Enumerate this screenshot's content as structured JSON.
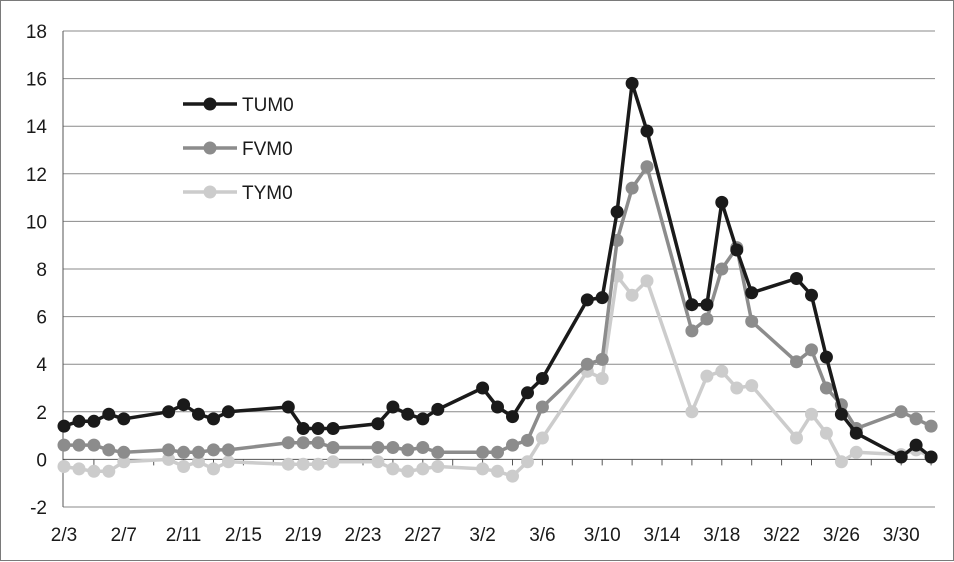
{
  "chart_data": {
    "type": "line",
    "title": "",
    "xlabel": "",
    "ylabel": "",
    "ylim": [
      -2,
      18
    ],
    "yticks": [
      -2,
      0,
      2,
      4,
      6,
      8,
      10,
      12,
      14,
      16,
      18
    ],
    "grid": "horizontal",
    "legend_position": "upper-left",
    "x_tick_labels": [
      "2/3",
      "2/7",
      "2/11",
      "2/15",
      "2/19",
      "2/23",
      "2/27",
      "3/2",
      "3/6",
      "3/10",
      "3/14",
      "3/18",
      "3/22",
      "3/26",
      "3/30"
    ],
    "series": [
      {
        "name": "TUM0",
        "color": "#1a1a1a",
        "points": [
          [
            "2/3",
            1.4
          ],
          [
            "2/4",
            1.6
          ],
          [
            "2/5",
            1.6
          ],
          [
            "2/6",
            1.9
          ],
          [
            "2/7",
            1.7
          ],
          [
            "2/10",
            2.0
          ],
          [
            "2/11",
            2.3
          ],
          [
            "2/12",
            1.9
          ],
          [
            "2/13",
            1.7
          ],
          [
            "2/14",
            2.0
          ],
          [
            "2/18",
            2.2
          ],
          [
            "2/19",
            1.3
          ],
          [
            "2/20",
            1.3
          ],
          [
            "2/21",
            1.3
          ],
          [
            "2/24",
            1.5
          ],
          [
            "2/25",
            2.2
          ],
          [
            "2/26",
            1.9
          ],
          [
            "2/27",
            1.7
          ],
          [
            "2/28",
            2.1
          ],
          [
            "3/2",
            3.0
          ],
          [
            "3/3",
            2.2
          ],
          [
            "3/4",
            1.8
          ],
          [
            "3/5",
            2.8
          ],
          [
            "3/6",
            3.4
          ],
          [
            "3/9",
            6.7
          ],
          [
            "3/10",
            6.8
          ],
          [
            "3/11",
            10.4
          ],
          [
            "3/12",
            15.8
          ],
          [
            "3/13",
            13.8
          ],
          [
            "3/16",
            6.5
          ],
          [
            "3/17",
            6.5
          ],
          [
            "3/18",
            10.8
          ],
          [
            "3/19",
            8.8
          ],
          [
            "3/20",
            7.0
          ],
          [
            "3/23",
            7.6
          ],
          [
            "3/24",
            6.9
          ],
          [
            "3/25",
            4.3
          ],
          [
            "3/26",
            1.9
          ],
          [
            "3/27",
            1.1
          ],
          [
            "3/30",
            0.1
          ],
          [
            "3/31",
            0.6
          ],
          [
            "4/1",
            0.1
          ]
        ]
      },
      {
        "name": "FVM0",
        "color": "#8c8c8c",
        "points": [
          [
            "2/3",
            0.6
          ],
          [
            "2/4",
            0.6
          ],
          [
            "2/5",
            0.6
          ],
          [
            "2/6",
            0.4
          ],
          [
            "2/7",
            0.3
          ],
          [
            "2/10",
            0.4
          ],
          [
            "2/11",
            0.3
          ],
          [
            "2/12",
            0.3
          ],
          [
            "2/13",
            0.4
          ],
          [
            "2/14",
            0.4
          ],
          [
            "2/18",
            0.7
          ],
          [
            "2/19",
            0.7
          ],
          [
            "2/20",
            0.7
          ],
          [
            "2/21",
            0.5
          ],
          [
            "2/24",
            0.5
          ],
          [
            "2/25",
            0.5
          ],
          [
            "2/26",
            0.4
          ],
          [
            "2/27",
            0.5
          ],
          [
            "2/28",
            0.3
          ],
          [
            "3/2",
            0.3
          ],
          [
            "3/3",
            0.3
          ],
          [
            "3/4",
            0.6
          ],
          [
            "3/5",
            0.8
          ],
          [
            "3/6",
            2.2
          ],
          [
            "3/9",
            4.0
          ],
          [
            "3/10",
            4.2
          ],
          [
            "3/11",
            9.2
          ],
          [
            "3/12",
            11.4
          ],
          [
            "3/13",
            12.3
          ],
          [
            "3/16",
            5.4
          ],
          [
            "3/17",
            5.9
          ],
          [
            "3/18",
            8.0
          ],
          [
            "3/19",
            8.9
          ],
          [
            "3/20",
            5.8
          ],
          [
            "3/23",
            4.1
          ],
          [
            "3/24",
            4.6
          ],
          [
            "3/25",
            3.0
          ],
          [
            "3/26",
            2.3
          ],
          [
            "3/27",
            1.3
          ],
          [
            "3/30",
            2.0
          ],
          [
            "3/31",
            1.7
          ],
          [
            "4/1",
            1.4
          ]
        ]
      },
      {
        "name": "TYM0",
        "color": "#cccccc",
        "points": [
          [
            "2/3",
            -0.3
          ],
          [
            "2/4",
            -0.4
          ],
          [
            "2/5",
            -0.5
          ],
          [
            "2/6",
            -0.5
          ],
          [
            "2/7",
            -0.1
          ],
          [
            "2/10",
            0.0
          ],
          [
            "2/11",
            -0.3
          ],
          [
            "2/12",
            -0.1
          ],
          [
            "2/13",
            -0.4
          ],
          [
            "2/14",
            -0.1
          ],
          [
            "2/18",
            -0.2
          ],
          [
            "2/19",
            -0.2
          ],
          [
            "2/20",
            -0.2
          ],
          [
            "2/21",
            -0.1
          ],
          [
            "2/24",
            -0.1
          ],
          [
            "2/25",
            -0.4
          ],
          [
            "2/26",
            -0.5
          ],
          [
            "2/27",
            -0.4
          ],
          [
            "2/28",
            -0.3
          ],
          [
            "3/2",
            -0.4
          ],
          [
            "3/3",
            -0.5
          ],
          [
            "3/4",
            -0.7
          ],
          [
            "3/5",
            -0.1
          ],
          [
            "3/6",
            0.9
          ],
          [
            "3/9",
            3.7
          ],
          [
            "3/10",
            3.4
          ],
          [
            "3/11",
            7.7
          ],
          [
            "3/12",
            6.9
          ],
          [
            "3/13",
            7.5
          ],
          [
            "3/16",
            2.0
          ],
          [
            "3/17",
            3.5
          ],
          [
            "3/18",
            3.7
          ],
          [
            "3/19",
            3.0
          ],
          [
            "3/20",
            3.1
          ],
          [
            "3/23",
            0.9
          ],
          [
            "3/24",
            1.9
          ],
          [
            "3/25",
            1.1
          ],
          [
            "3/26",
            -0.1
          ],
          [
            "3/27",
            0.3
          ],
          [
            "3/30",
            0.2
          ],
          [
            "3/31",
            0.4
          ],
          [
            "4/1",
            0.1
          ]
        ]
      }
    ]
  }
}
